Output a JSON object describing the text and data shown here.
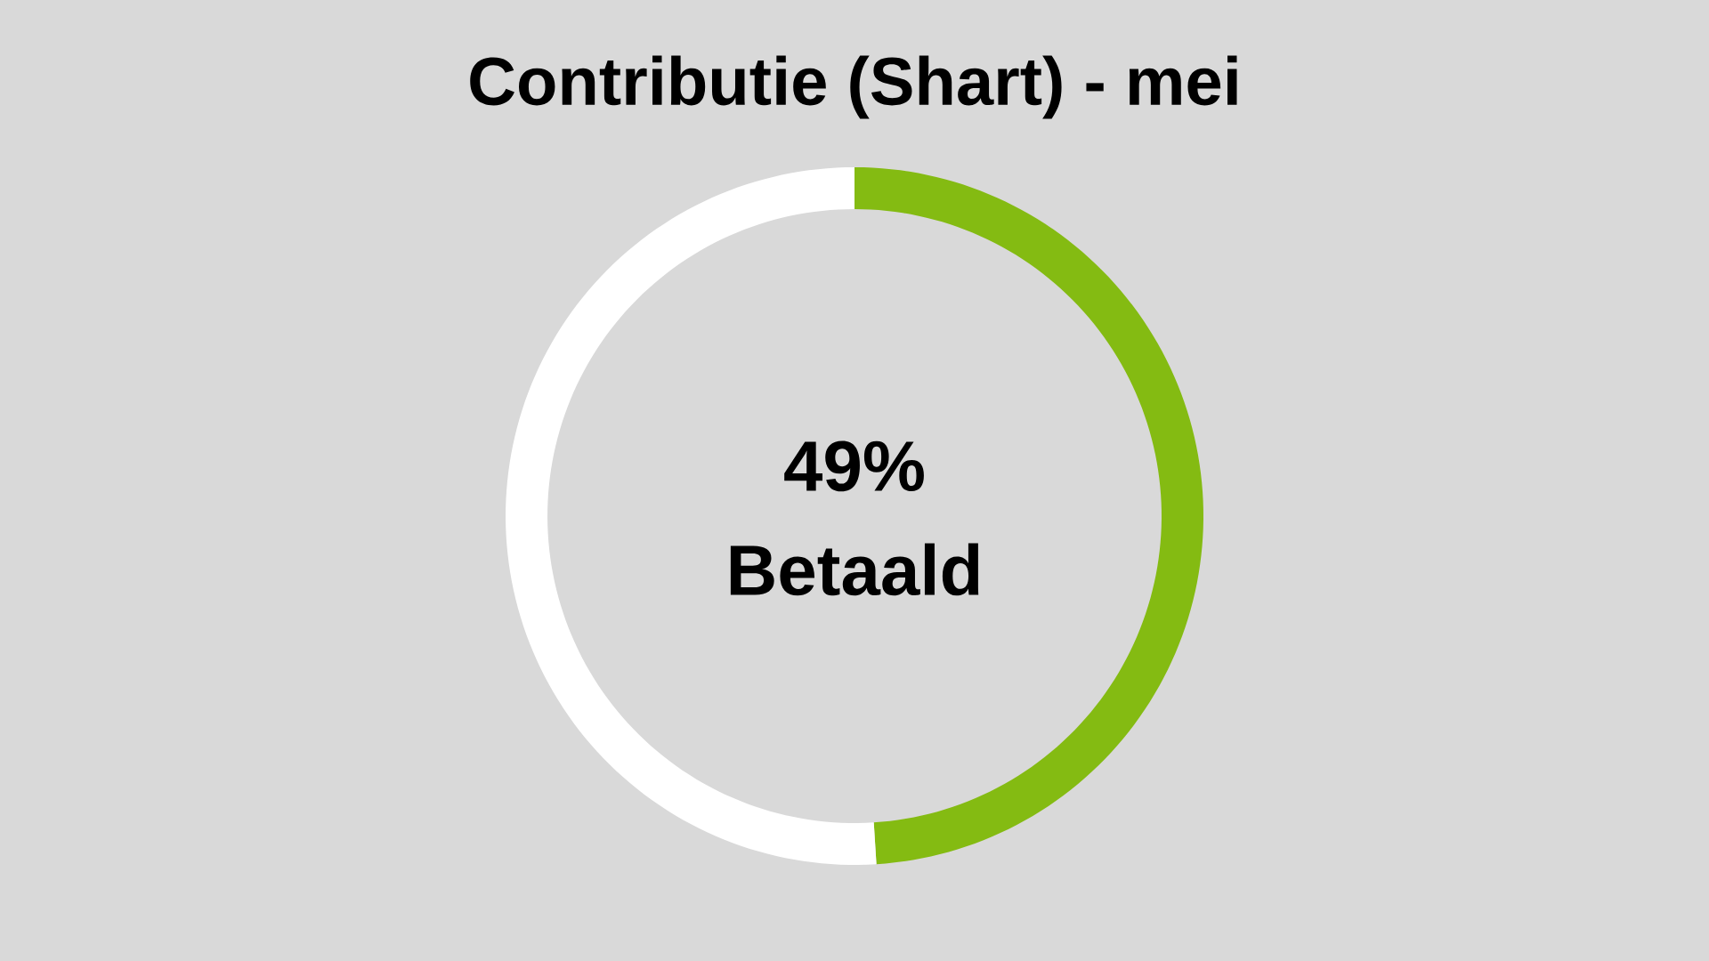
{
  "chart_data": {
    "type": "donut",
    "title": "Contributie (Shart) - mei",
    "categories": [
      null,
      null
    ],
    "annotations": [
      "49%",
      "Betaald"
    ],
    "values": [
      49,
      51
    ],
    "colors": [
      "#84bb12",
      "#ffffff"
    ]
  }
}
